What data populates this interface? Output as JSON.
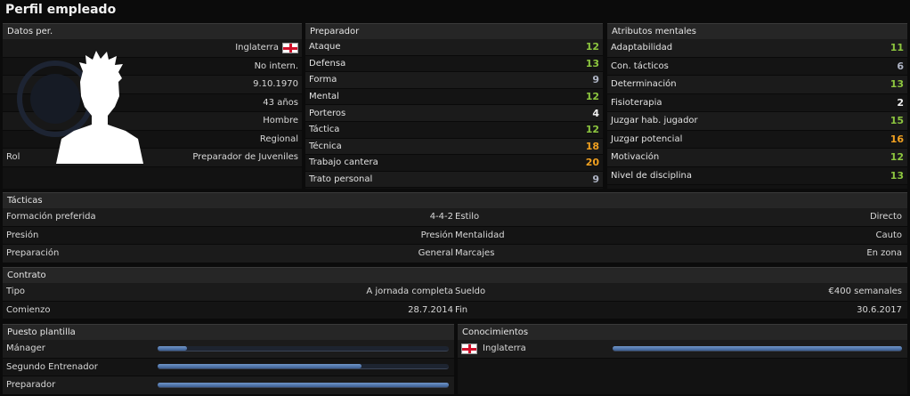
{
  "page_title": "Perfil empleado",
  "personal": {
    "header": "Datos per.",
    "nationality": "Inglaterra",
    "international": "No intern.",
    "dob": "9.10.1970",
    "age": "43 años",
    "gender": "Hombre",
    "reputation": "Regional",
    "role_label": "Rol",
    "role_value": "Preparador de Juveniles"
  },
  "coach": {
    "header": "Preparador",
    "items": [
      {
        "label": "Ataque",
        "value": "12",
        "color": "green"
      },
      {
        "label": "Defensa",
        "value": "13",
        "color": "green"
      },
      {
        "label": "Forma",
        "value": "9",
        "color": "grey"
      },
      {
        "label": "Mental",
        "value": "12",
        "color": "green"
      },
      {
        "label": "Porteros",
        "value": "4",
        "color": "white"
      },
      {
        "label": "Táctica",
        "value": "12",
        "color": "green"
      },
      {
        "label": "Técnica",
        "value": "18",
        "color": "orange"
      },
      {
        "label": "Trabajo cantera",
        "value": "20",
        "color": "orange"
      },
      {
        "label": "Trato personal",
        "value": "9",
        "color": "grey"
      }
    ]
  },
  "mental": {
    "header": "Atributos mentales",
    "items": [
      {
        "label": "Adaptabilidad",
        "value": "11",
        "color": "green"
      },
      {
        "label": "Con. tácticos",
        "value": "6",
        "color": "grey"
      },
      {
        "label": "Determinación",
        "value": "13",
        "color": "green"
      },
      {
        "label": "Fisioterapia",
        "value": "2",
        "color": "white"
      },
      {
        "label": "Juzgar hab. jugador",
        "value": "15",
        "color": "green"
      },
      {
        "label": "Juzgar potencial",
        "value": "16",
        "color": "orange"
      },
      {
        "label": "Motivación",
        "value": "12",
        "color": "green"
      },
      {
        "label": "Nivel de disciplina",
        "value": "13",
        "color": "green"
      }
    ]
  },
  "tactics": {
    "header": "Tácticas",
    "rows": [
      {
        "l1": "Formación preferida",
        "v1": "4-4-2",
        "l2": "Estilo",
        "v2": "Directo"
      },
      {
        "l1": "Presión",
        "v1": "Presión",
        "l2": "Mentalidad",
        "v2": "Cauto"
      },
      {
        "l1": "Preparación",
        "v1": "General",
        "l2": "Marcajes",
        "v2": "En zona"
      }
    ]
  },
  "contract": {
    "header": "Contrato",
    "rows": [
      {
        "l1": "Tipo",
        "v1": "A jornada completa",
        "l2": "Sueldo",
        "v2": "€400 semanales"
      },
      {
        "l1": "Comienzo",
        "v1": "28.7.2014",
        "l2": "Fin",
        "v2": "30.6.2017"
      }
    ]
  },
  "positions": {
    "header": "Puesto plantilla",
    "items": [
      {
        "label": "Mánager",
        "level": 0.1
      },
      {
        "label": "Segundo Entrenador",
        "level": 0.7
      },
      {
        "label": "Preparador",
        "level": 1.0
      }
    ]
  },
  "knowledge": {
    "header": "Conocimientos",
    "items": [
      {
        "label": "Inglaterra",
        "level": 1.0
      }
    ]
  },
  "colors": {
    "green": "#8dc63f",
    "orange": "#f0a020",
    "white": "#f0f0f0",
    "grey": "#aeb4c4",
    "bar": "#4f74aa"
  }
}
